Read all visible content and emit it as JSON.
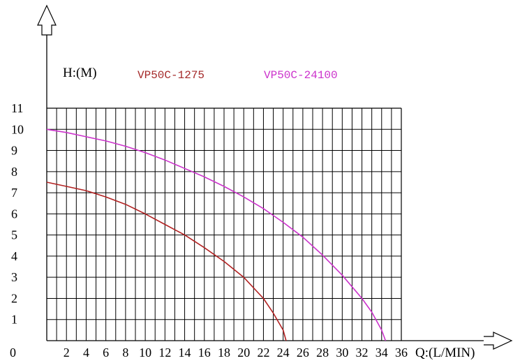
{
  "chart_data": {
    "type": "line",
    "title": "",
    "ylabel": "H:(M)",
    "xlabel": "Q:(L/MIN)",
    "origin_label": "0",
    "x_ticks": [
      "2",
      "4",
      "6",
      "8",
      "10",
      "12",
      "14",
      "16",
      "18",
      "20",
      "22",
      "24",
      "26",
      "28",
      "30",
      "32",
      "34",
      "36"
    ],
    "y_ticks": [
      "1",
      "2",
      "3",
      "4",
      "5",
      "6",
      "7",
      "8",
      "9",
      "10",
      "11"
    ],
    "xlim": [
      0,
      36
    ],
    "ylim": [
      0,
      11
    ],
    "grid": true,
    "legend_position": "top",
    "series": [
      {
        "name": "VP50C-1275",
        "color": "#b22222",
        "points": [
          [
            0,
            7.5
          ],
          [
            2,
            7.3
          ],
          [
            4,
            7.1
          ],
          [
            6,
            6.8
          ],
          [
            8,
            6.45
          ],
          [
            10,
            6.0
          ],
          [
            12,
            5.5
          ],
          [
            14,
            5.0
          ],
          [
            16,
            4.4
          ],
          [
            18,
            3.75
          ],
          [
            20,
            3.0
          ],
          [
            22,
            2.0
          ],
          [
            23,
            1.3
          ],
          [
            24,
            0.5
          ],
          [
            24.3,
            0
          ]
        ]
      },
      {
        "name": "VP50C-24100",
        "color": "#cc33cc",
        "points": [
          [
            0,
            10.0
          ],
          [
            2,
            9.85
          ],
          [
            4,
            9.65
          ],
          [
            6,
            9.45
          ],
          [
            8,
            9.2
          ],
          [
            10,
            8.9
          ],
          [
            12,
            8.55
          ],
          [
            14,
            8.15
          ],
          [
            16,
            7.75
          ],
          [
            18,
            7.3
          ],
          [
            20,
            6.8
          ],
          [
            22,
            6.25
          ],
          [
            24,
            5.6
          ],
          [
            26,
            4.9
          ],
          [
            28,
            4.05
          ],
          [
            30,
            3.1
          ],
          [
            32,
            2.0
          ],
          [
            33,
            1.35
          ],
          [
            34,
            0.5
          ],
          [
            34.4,
            0
          ]
        ]
      }
    ]
  }
}
